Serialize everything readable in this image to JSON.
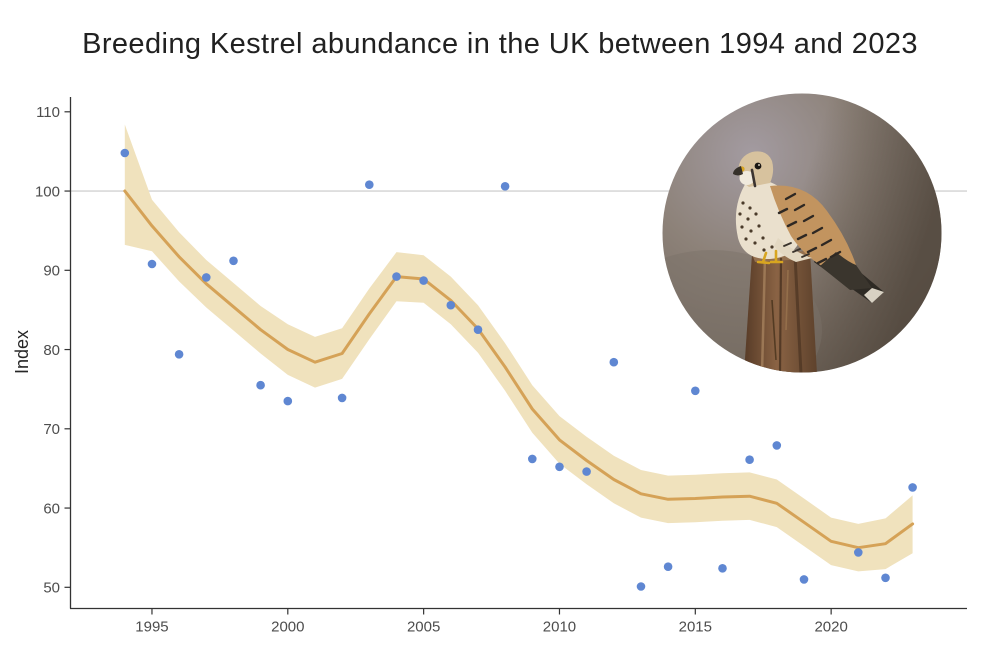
{
  "title": "Breeding Kestrel abundance in the UK between 1994 and 2023",
  "image_caption": "Common Kestrel perched on a wooden post",
  "chart_data": {
    "type": "scatter",
    "title": "Breeding Kestrel abundance in the UK between 1994 and 2023",
    "xlabel": "",
    "ylabel": "Index",
    "x_ticks": [
      1995,
      2000,
      2005,
      2010,
      2015,
      2020
    ],
    "y_ticks": [
      50,
      60,
      70,
      80,
      90,
      100,
      110
    ],
    "xlim": [
      1992.5,
      2024.8
    ],
    "ylim": [
      47.5,
      112
    ],
    "grid": "off",
    "legend": "none",
    "reference_line_y": 100,
    "missing_years": [
      2001,
      2020
    ],
    "years": [
      1994,
      1995,
      1996,
      1997,
      1998,
      1999,
      2000,
      2001,
      2002,
      2003,
      2004,
      2005,
      2006,
      2007,
      2008,
      2009,
      2010,
      2011,
      2012,
      2013,
      2014,
      2015,
      2016,
      2017,
      2018,
      2019,
      2020,
      2021,
      2022,
      2023
    ],
    "points": [
      104.8,
      90.8,
      79.4,
      89.1,
      91.2,
      75.5,
      73.5,
      null,
      73.9,
      100.8,
      89.2,
      88.7,
      85.6,
      82.5,
      100.6,
      66.2,
      65.2,
      64.6,
      78.4,
      50.1,
      52.6,
      74.8,
      52.4,
      66.1,
      67.9,
      51.0,
      null,
      54.4,
      51.2,
      62.6
    ],
    "trend_smoothed": [
      100.0,
      95.6,
      91.7,
      88.3,
      85.4,
      82.5,
      80.0,
      78.4,
      79.5,
      84.5,
      89.2,
      88.9,
      86.2,
      82.6,
      77.8,
      72.5,
      68.6,
      66.0,
      63.6,
      61.8,
      61.1,
      61.2,
      61.4,
      61.5,
      60.6,
      58.2,
      55.8,
      55.0,
      55.5,
      58.0
    ],
    "ci_upper": [
      108.4,
      98.9,
      94.8,
      91.3,
      88.4,
      85.5,
      83.2,
      81.6,
      82.7,
      87.7,
      92.3,
      91.9,
      89.2,
      85.6,
      80.8,
      75.5,
      71.6,
      69.0,
      66.6,
      64.8,
      64.1,
      64.2,
      64.4,
      64.5,
      63.6,
      61.2,
      58.8,
      58.0,
      58.7,
      61.6
    ],
    "ci_lower": [
      93.2,
      92.4,
      88.6,
      85.3,
      82.4,
      79.5,
      76.8,
      75.2,
      76.3,
      81.3,
      86.1,
      85.9,
      83.2,
      79.6,
      74.8,
      69.5,
      65.6,
      63.0,
      60.6,
      58.8,
      58.1,
      58.2,
      58.4,
      58.5,
      57.6,
      55.2,
      52.8,
      52.0,
      52.3,
      54.3
    ],
    "colors": {
      "point": "#5f87d2",
      "trend_line": "#d5a257",
      "confidence_band": "#f0e2bd",
      "reference_line": "#d9d9d9",
      "axis": "#333333",
      "tick_label": "#4d4d4d"
    }
  }
}
